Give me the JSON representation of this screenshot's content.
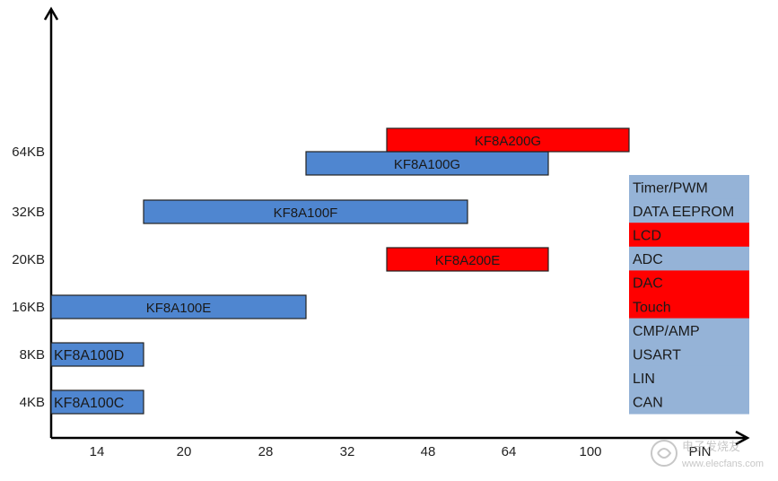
{
  "chart_data": {
    "type": "bar",
    "orientation": "horizontal-range",
    "title": "",
    "xlabel": "PIN",
    "ylabel": "",
    "x_categories": [
      "14",
      "20",
      "28",
      "32",
      "48",
      "64",
      "100"
    ],
    "y_categories": [
      "4KB",
      "8KB",
      "16KB",
      "20KB",
      "32KB",
      "64KB"
    ],
    "bars": [
      {
        "label": "KF8A100C",
        "y": "4KB",
        "x_start": "0",
        "x_end": "14",
        "color": "#4f86d0"
      },
      {
        "label": "KF8A100D",
        "y": "8KB",
        "x_start": "0",
        "x_end": "14",
        "color": "#4f86d0"
      },
      {
        "label": "KF8A100E",
        "y": "16KB",
        "x_start": "0",
        "x_end": "28",
        "color": "#4f86d0"
      },
      {
        "label": "KF8A200E",
        "y": "20KB",
        "x_start": "32",
        "x_end": "64",
        "color": "#ff0000"
      },
      {
        "label": "KF8A100F",
        "y": "32KB",
        "x_start": "14",
        "x_end": "48",
        "color": "#4f86d0"
      },
      {
        "label": "KF8A100G",
        "y": "64KB",
        "x_start": "28",
        "x_end": "64",
        "color": "#4f86d0"
      },
      {
        "label": "KF8A200G",
        "y": "64KB",
        "x_start": "32",
        "x_end": "100",
        "color": "#ff0000"
      }
    ],
    "feature_list": [
      {
        "label": "Timer/PWM",
        "color": "#95b3d7"
      },
      {
        "label": "DATA EEPROM",
        "color": "#95b3d7"
      },
      {
        "label": "LCD",
        "color": "#ff0000"
      },
      {
        "label": "ADC",
        "color": "#95b3d7"
      },
      {
        "label": "DAC",
        "color": "#ff0000"
      },
      {
        "label": "Touch",
        "color": "#ff0000"
      },
      {
        "label": "CMP/AMP",
        "color": "#95b3d7"
      },
      {
        "label": "USART",
        "color": "#95b3d7"
      },
      {
        "label": "LIN",
        "color": "#95b3d7"
      },
      {
        "label": "CAN",
        "color": "#95b3d7"
      }
    ],
    "grid": false,
    "legend": "right"
  },
  "watermark": {
    "line1": "电子发烧友",
    "line2": "www.elecfans.com"
  }
}
